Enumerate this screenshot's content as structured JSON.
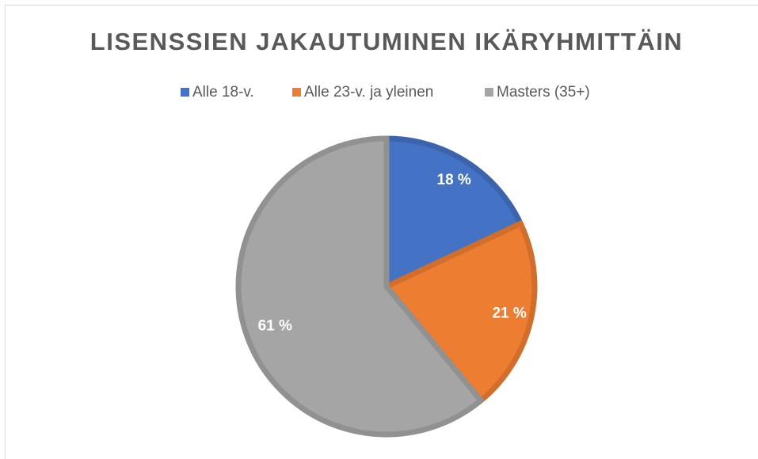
{
  "chart_data": {
    "type": "pie",
    "title": "LISENSSIEN JAKAUTUMINEN IKÄRYHMITTÄIN",
    "categories": [
      "Alle 18-v.",
      "Alle 23-v. ja yleinen",
      "Masters (35+)"
    ],
    "values": [
      18,
      21,
      61
    ],
    "value_labels": [
      "18 %",
      "21 %",
      "61 %"
    ],
    "colors": [
      "#4472c4",
      "#ed7d31",
      "#a5a5a5"
    ],
    "legend": "top"
  }
}
